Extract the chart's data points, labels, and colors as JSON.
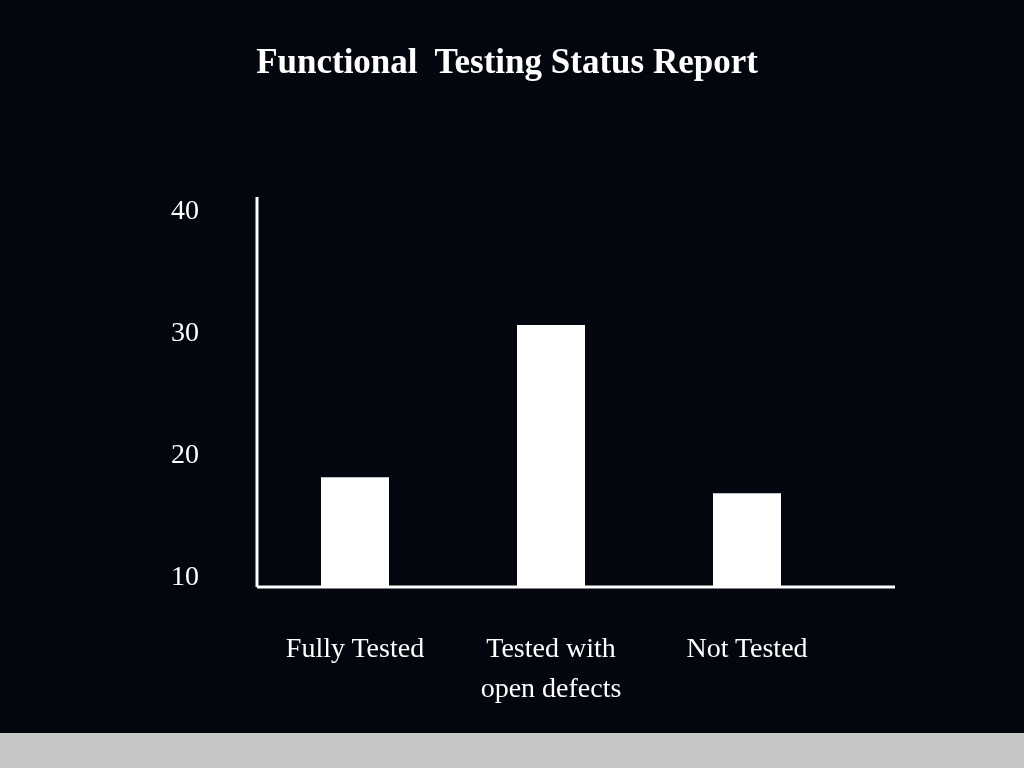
{
  "chart_data": {
    "type": "bar",
    "title": "Functional  Testing Status Report",
    "categories": [
      "Fully Tested",
      "Tested with open defects",
      "Not Tested"
    ],
    "values": [
      18,
      30.5,
      16.7
    ],
    "color": "#ffffff",
    "ylim": [
      9,
      41
    ],
    "yticks": [
      10,
      20,
      30,
      40
    ]
  }
}
